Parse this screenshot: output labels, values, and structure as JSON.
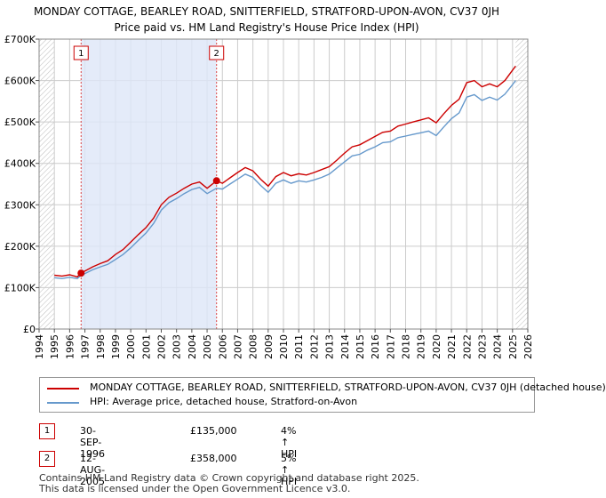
{
  "title_line1": "MONDAY COTTAGE, BEARLEY ROAD, SNITTERFIELD, STRATFORD-UPON-AVON, CV37 0JH",
  "title_line2": "Price paid vs. HM Land Registry's House Price Index (HPI)",
  "colors": {
    "property": "#cc0000",
    "hpi": "#6699cc",
    "shade": "#dde6f7",
    "grid": "#cccccc"
  },
  "legend": {
    "property": "MONDAY COTTAGE, BEARLEY ROAD, SNITTERFIELD, STRATFORD-UPON-AVON, CV37 0JH (detached house)",
    "hpi": "HPI: Average price, detached house, Stratford-on-Avon"
  },
  "sales": [
    {
      "num": "1",
      "date": "30-SEP-1996",
      "price": "£135,000",
      "hpi": "4% ↑ HPI"
    },
    {
      "num": "2",
      "date": "12-AUG-2005",
      "price": "£358,000",
      "hpi": "5% ↑ HPI"
    }
  ],
  "footer": {
    "line1": "Contains HM Land Registry data © Crown copyright and database right 2025.",
    "line2": "This data is licensed under the Open Government Licence v3.0."
  },
  "chart_data": {
    "type": "line",
    "title": "MONDAY COTTAGE, BEARLEY ROAD, SNITTERFIELD, STRATFORD-UPON-AVON, CV37 0JH",
    "subtitle": "Price paid vs. HM Land Registry's House Price Index (HPI)",
    "xlabel": "",
    "ylabel": "",
    "xlim": [
      1994,
      2026
    ],
    "ylim": [
      0,
      700000
    ],
    "x_ticks": [
      1994,
      1995,
      1996,
      1997,
      1998,
      1999,
      2000,
      2001,
      2002,
      2003,
      2004,
      2005,
      2006,
      2007,
      2008,
      2009,
      2010,
      2011,
      2012,
      2013,
      2014,
      2015,
      2016,
      2017,
      2018,
      2019,
      2020,
      2021,
      2022,
      2023,
      2024,
      2025,
      2026
    ],
    "y_ticks": [
      {
        "value": 0,
        "label": "£0"
      },
      {
        "value": 100000,
        "label": "£100K"
      },
      {
        "value": 200000,
        "label": "£200K"
      },
      {
        "value": 300000,
        "label": "£300K"
      },
      {
        "value": 400000,
        "label": "£400K"
      },
      {
        "value": 500000,
        "label": "£500K"
      },
      {
        "value": 600000,
        "label": "£600K"
      },
      {
        "value": 700000,
        "label": "£700K"
      }
    ],
    "hatched_before": 1995.0,
    "hatched_after": 2025.2,
    "ownership_period": [
      1996.75,
      2005.62
    ],
    "series": [
      {
        "name": "MONDAY COTTAGE, BEARLEY ROAD, SNITTERFIELD, STRATFORD-UPON-AVON, CV37 0JH (detached house)",
        "x": [
          1995.0,
          1995.5,
          1996.0,
          1996.5,
          1996.75,
          1997.0,
          1997.5,
          1998.0,
          1998.5,
          1999.0,
          1999.5,
          2000.0,
          2000.5,
          2001.0,
          2001.5,
          2002.0,
          2002.5,
          2003.0,
          2003.5,
          2004.0,
          2004.5,
          2005.0,
          2005.62,
          2006.0,
          2006.5,
          2007.0,
          2007.5,
          2008.0,
          2008.5,
          2009.0,
          2009.5,
          2010.0,
          2010.5,
          2011.0,
          2011.5,
          2012.0,
          2012.5,
          2013.0,
          2013.5,
          2014.0,
          2014.5,
          2015.0,
          2015.5,
          2016.0,
          2016.5,
          2017.0,
          2017.5,
          2018.0,
          2018.5,
          2019.0,
          2019.5,
          2020.0,
          2020.5,
          2021.0,
          2021.5,
          2022.0,
          2022.5,
          2023.0,
          2023.5,
          2024.0,
          2024.5,
          2025.0,
          2025.2
        ],
        "y": [
          130000,
          128000,
          131000,
          126000,
          135000,
          140000,
          150000,
          158000,
          165000,
          180000,
          192000,
          210000,
          228000,
          245000,
          268000,
          300000,
          318000,
          328000,
          340000,
          350000,
          355000,
          340000,
          358000,
          352000,
          365000,
          378000,
          390000,
          382000,
          362000,
          345000,
          368000,
          378000,
          370000,
          375000,
          372000,
          378000,
          385000,
          392000,
          408000,
          425000,
          440000,
          445000,
          455000,
          465000,
          475000,
          478000,
          490000,
          495000,
          500000,
          505000,
          510000,
          498000,
          520000,
          540000,
          555000,
          595000,
          600000,
          585000,
          592000,
          585000,
          600000,
          625000,
          635000
        ]
      },
      {
        "name": "HPI: Average price, detached house, Stratford-on-Avon",
        "x": [
          1995.0,
          1995.5,
          1996.0,
          1996.5,
          1996.75,
          1997.0,
          1997.5,
          1998.0,
          1998.5,
          1999.0,
          1999.5,
          2000.0,
          2000.5,
          2001.0,
          2001.5,
          2002.0,
          2002.5,
          2003.0,
          2003.5,
          2004.0,
          2004.5,
          2005.0,
          2005.62,
          2006.0,
          2006.5,
          2007.0,
          2007.5,
          2008.0,
          2008.5,
          2009.0,
          2009.5,
          2010.0,
          2010.5,
          2011.0,
          2011.5,
          2012.0,
          2012.5,
          2013.0,
          2013.5,
          2014.0,
          2014.5,
          2015.0,
          2015.5,
          2016.0,
          2016.5,
          2017.0,
          2017.5,
          2018.0,
          2018.5,
          2019.0,
          2019.5,
          2020.0,
          2020.5,
          2021.0,
          2021.5,
          2022.0,
          2022.5,
          2023.0,
          2023.5,
          2024.0,
          2024.5,
          2025.0,
          2025.2
        ],
        "y": [
          124000,
          122000,
          125000,
          122000,
          130000,
          134000,
          143000,
          150000,
          156000,
          168000,
          180000,
          196000,
          214000,
          232000,
          255000,
          287000,
          305000,
          315000,
          327000,
          337000,
          342000,
          327000,
          340000,
          338000,
          350000,
          362000,
          374000,
          366000,
          347000,
          330000,
          352000,
          360000,
          352000,
          358000,
          355000,
          360000,
          366000,
          374000,
          389000,
          404000,
          418000,
          422000,
          432000,
          440000,
          450000,
          452000,
          462000,
          466000,
          470000,
          474000,
          478000,
          467000,
          488000,
          508000,
          522000,
          560000,
          566000,
          552000,
          560000,
          553000,
          567000,
          590000,
          600000
        ]
      }
    ],
    "sale_points": [
      {
        "label": "1",
        "x": 1996.75,
        "y": 135000
      },
      {
        "label": "2",
        "x": 2005.62,
        "y": 358000
      }
    ]
  }
}
